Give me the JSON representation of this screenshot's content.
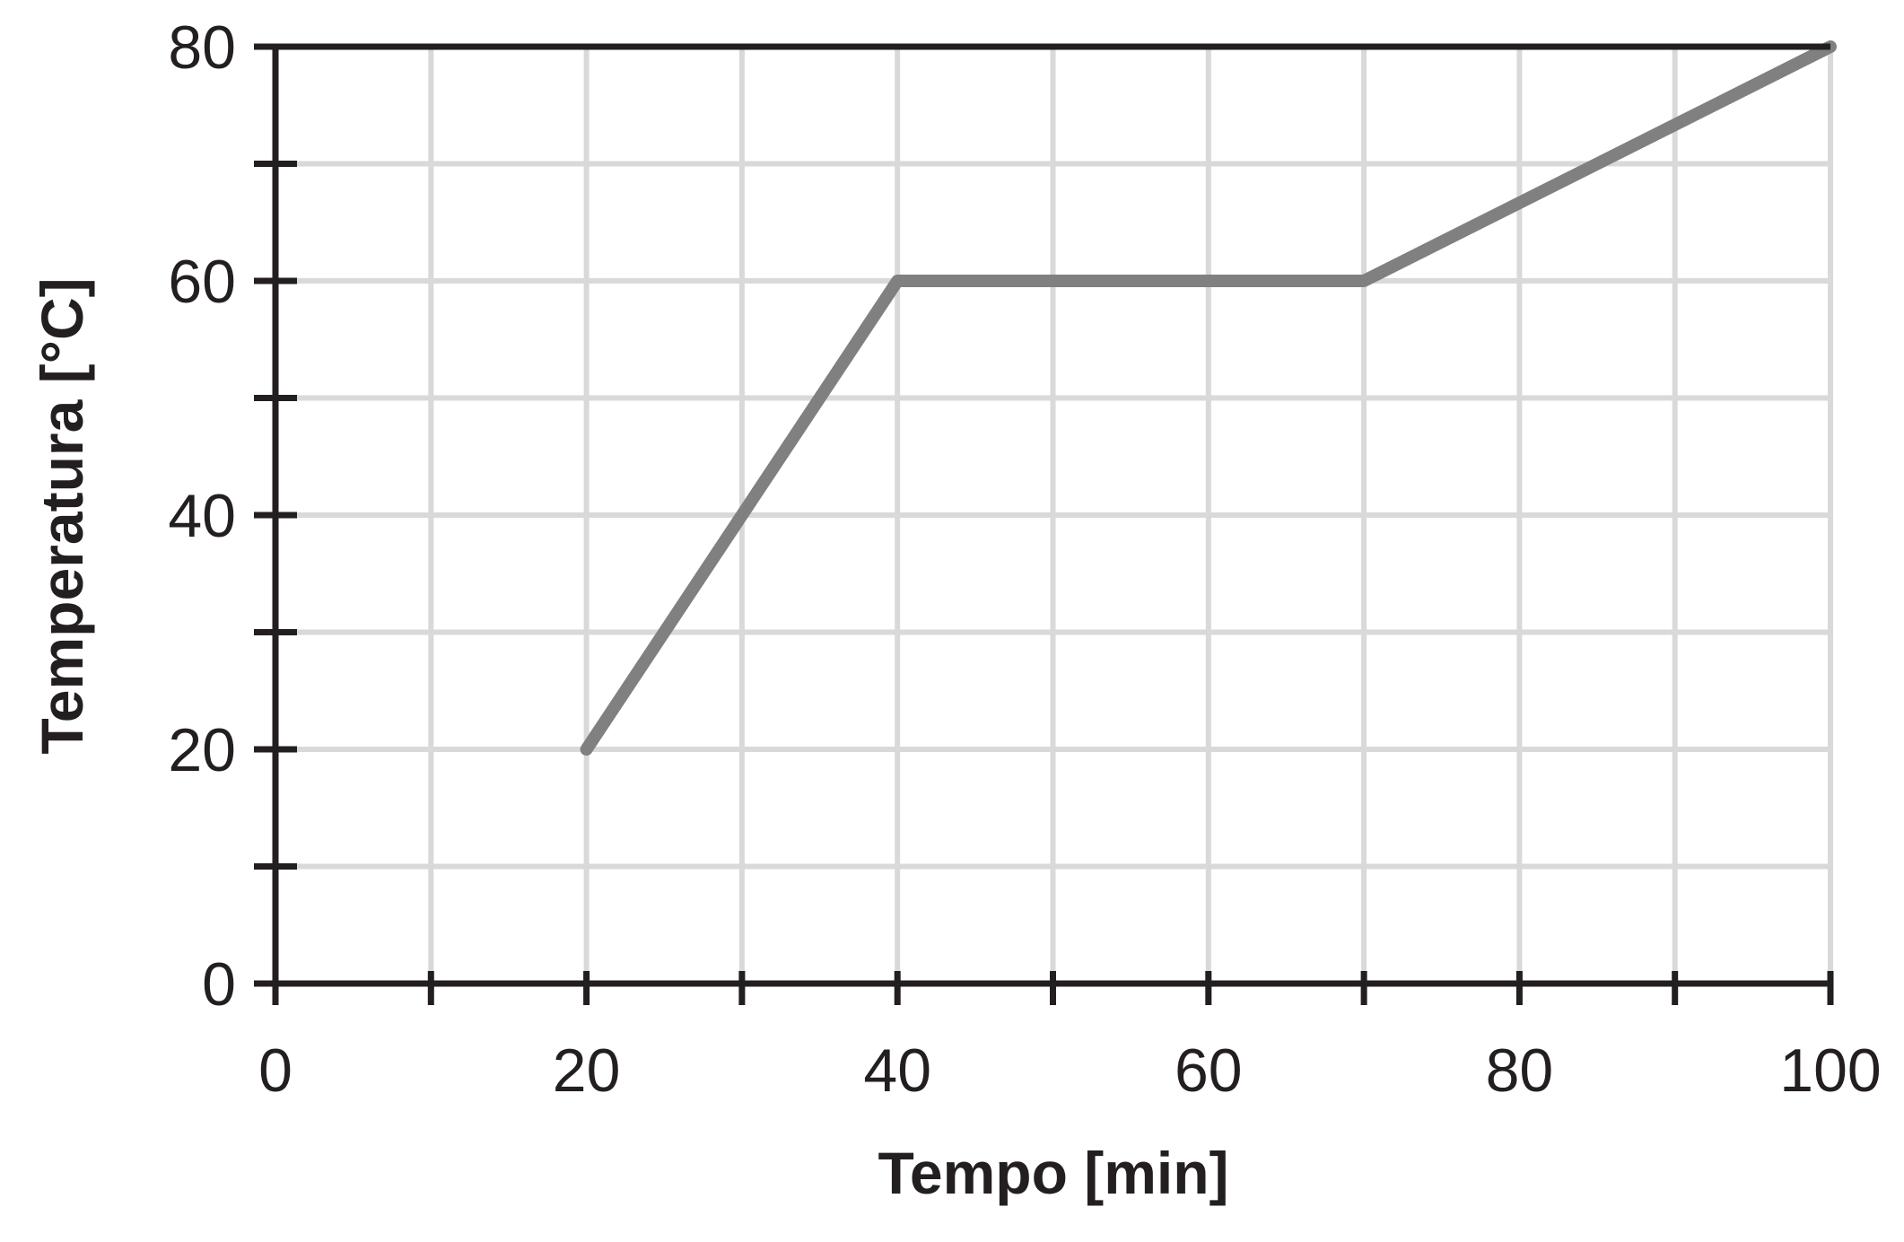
{
  "chart_data": {
    "type": "line",
    "title": "",
    "xlabel": "Tempo [min]",
    "ylabel": "Temperatura [°C]",
    "xlim": [
      0,
      100
    ],
    "ylim": [
      0,
      80
    ],
    "x_ticks": [
      0,
      20,
      40,
      60,
      80,
      100
    ],
    "y_ticks": [
      0,
      20,
      40,
      60,
      80
    ],
    "grid": true,
    "series": [
      {
        "x": [
          20,
          40,
          70,
          100
        ],
        "y": [
          20,
          60,
          60,
          80
        ]
      }
    ],
    "colors": {
      "line": "#808080",
      "grid": "#d9d9d9",
      "axis": "#231f20"
    }
  }
}
